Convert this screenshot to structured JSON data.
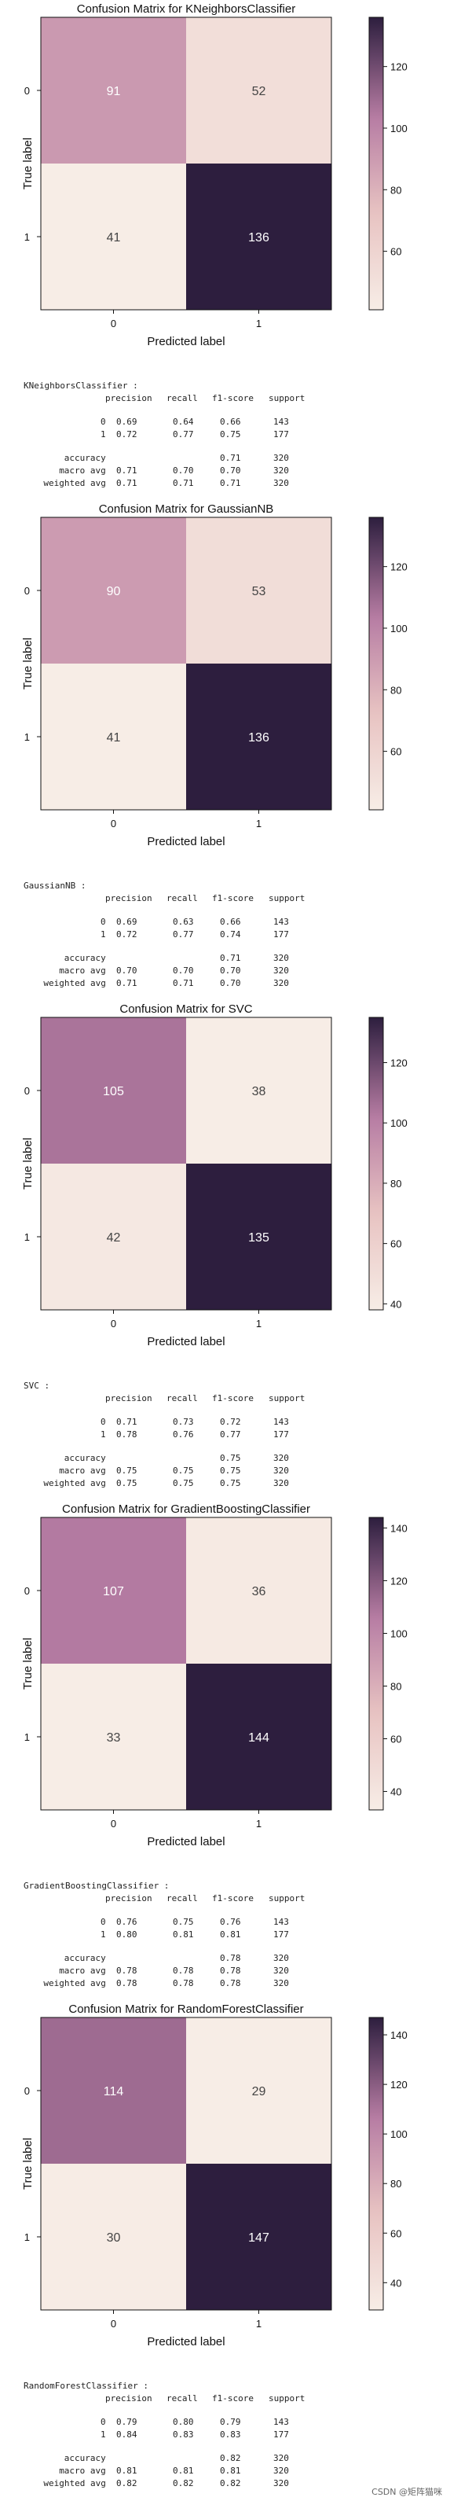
{
  "charts": [
    {
      "title": "Confusion Matrix for KNeighborsClassifier",
      "matrix": [
        [
          91,
          52
        ],
        [
          41,
          136
        ]
      ],
      "colorbar_ticks": [
        60,
        80,
        100,
        120
      ],
      "vmin": 41,
      "vmax": 136,
      "report": {
        "name": "KNeighborsClassifier :",
        "headers": [
          "precision",
          "recall",
          "f1-score",
          "support"
        ],
        "rows": [
          {
            "label": "0",
            "values": [
              "0.69",
              "0.64",
              "0.66",
              "143"
            ]
          },
          {
            "label": "1",
            "values": [
              "0.72",
              "0.77",
              "0.75",
              "177"
            ]
          }
        ],
        "summary": [
          {
            "label": "accuracy",
            "values": [
              "",
              "",
              "0.71",
              "320"
            ]
          },
          {
            "label": "macro avg",
            "values": [
              "0.71",
              "0.70",
              "0.70",
              "320"
            ]
          },
          {
            "label": "weighted avg",
            "values": [
              "0.71",
              "0.71",
              "0.71",
              "320"
            ]
          }
        ]
      }
    },
    {
      "title": "Confusion Matrix for GaussianNB",
      "matrix": [
        [
          90,
          53
        ],
        [
          41,
          136
        ]
      ],
      "colorbar_ticks": [
        60,
        80,
        100,
        120
      ],
      "vmin": 41,
      "vmax": 136,
      "report": {
        "name": "GaussianNB :",
        "headers": [
          "precision",
          "recall",
          "f1-score",
          "support"
        ],
        "rows": [
          {
            "label": "0",
            "values": [
              "0.69",
              "0.63",
              "0.66",
              "143"
            ]
          },
          {
            "label": "1",
            "values": [
              "0.72",
              "0.77",
              "0.74",
              "177"
            ]
          }
        ],
        "summary": [
          {
            "label": "accuracy",
            "values": [
              "",
              "",
              "0.71",
              "320"
            ]
          },
          {
            "label": "macro avg",
            "values": [
              "0.70",
              "0.70",
              "0.70",
              "320"
            ]
          },
          {
            "label": "weighted avg",
            "values": [
              "0.71",
              "0.71",
              "0.70",
              "320"
            ]
          }
        ]
      }
    },
    {
      "title": "Confusion Matrix for SVC",
      "matrix": [
        [
          105,
          38
        ],
        [
          42,
          135
        ]
      ],
      "colorbar_ticks": [
        40,
        60,
        80,
        100,
        120
      ],
      "vmin": 38,
      "vmax": 135,
      "report": {
        "name": "SVC :",
        "headers": [
          "precision",
          "recall",
          "f1-score",
          "support"
        ],
        "rows": [
          {
            "label": "0",
            "values": [
              "0.71",
              "0.73",
              "0.72",
              "143"
            ]
          },
          {
            "label": "1",
            "values": [
              "0.78",
              "0.76",
              "0.77",
              "177"
            ]
          }
        ],
        "summary": [
          {
            "label": "accuracy",
            "values": [
              "",
              "",
              "0.75",
              "320"
            ]
          },
          {
            "label": "macro avg",
            "values": [
              "0.75",
              "0.75",
              "0.75",
              "320"
            ]
          },
          {
            "label": "weighted avg",
            "values": [
              "0.75",
              "0.75",
              "0.75",
              "320"
            ]
          }
        ]
      }
    },
    {
      "title": "Confusion Matrix for GradientBoostingClassifier",
      "matrix": [
        [
          107,
          36
        ],
        [
          33,
          144
        ]
      ],
      "colorbar_ticks": [
        40,
        60,
        80,
        100,
        120,
        140
      ],
      "vmin": 33,
      "vmax": 144,
      "report": {
        "name": "GradientBoostingClassifier :",
        "headers": [
          "precision",
          "recall",
          "f1-score",
          "support"
        ],
        "rows": [
          {
            "label": "0",
            "values": [
              "0.76",
              "0.75",
              "0.76",
              "143"
            ]
          },
          {
            "label": "1",
            "values": [
              "0.80",
              "0.81",
              "0.81",
              "177"
            ]
          }
        ],
        "summary": [
          {
            "label": "accuracy",
            "values": [
              "",
              "",
              "0.78",
              "320"
            ]
          },
          {
            "label": "macro avg",
            "values": [
              "0.78",
              "0.78",
              "0.78",
              "320"
            ]
          },
          {
            "label": "weighted avg",
            "values": [
              "0.78",
              "0.78",
              "0.78",
              "320"
            ]
          }
        ]
      }
    },
    {
      "title": "Confusion Matrix for RandomForestClassifier",
      "matrix": [
        [
          114,
          29
        ],
        [
          30,
          147
        ]
      ],
      "colorbar_ticks": [
        40,
        60,
        80,
        100,
        120,
        140
      ],
      "vmin": 29,
      "vmax": 147,
      "report": {
        "name": "RandomForestClassifier :",
        "headers": [
          "precision",
          "recall",
          "f1-score",
          "support"
        ],
        "rows": [
          {
            "label": "0",
            "values": [
              "0.79",
              "0.80",
              "0.79",
              "143"
            ]
          },
          {
            "label": "1",
            "values": [
              "0.84",
              "0.83",
              "0.83",
              "177"
            ]
          }
        ],
        "summary": [
          {
            "label": "accuracy",
            "values": [
              "",
              "",
              "0.82",
              "320"
            ]
          },
          {
            "label": "macro avg",
            "values": [
              "0.81",
              "0.81",
              "0.81",
              "320"
            ]
          },
          {
            "label": "weighted avg",
            "values": [
              "0.82",
              "0.82",
              "0.82",
              "320"
            ]
          }
        ]
      }
    }
  ],
  "axis": {
    "xlabel": "Predicted label",
    "ylabel": "True label",
    "class_labels": [
      "0",
      "1"
    ]
  },
  "chart_data": [
    {
      "type": "heatmap",
      "title": "Confusion Matrix for KNeighborsClassifier",
      "x": [
        "0",
        "1"
      ],
      "y": [
        "0",
        "1"
      ],
      "values": [
        [
          91,
          52
        ],
        [
          41,
          136
        ]
      ],
      "xlabel": "Predicted label",
      "ylabel": "True label"
    },
    {
      "type": "heatmap",
      "title": "Confusion Matrix for GaussianNB",
      "x": [
        "0",
        "1"
      ],
      "y": [
        "0",
        "1"
      ],
      "values": [
        [
          90,
          53
        ],
        [
          41,
          136
        ]
      ],
      "xlabel": "Predicted label",
      "ylabel": "True label"
    },
    {
      "type": "heatmap",
      "title": "Confusion Matrix for SVC",
      "x": [
        "0",
        "1"
      ],
      "y": [
        "0",
        "1"
      ],
      "values": [
        [
          105,
          38
        ],
        [
          42,
          135
        ]
      ],
      "xlabel": "Predicted label",
      "ylabel": "True label"
    },
    {
      "type": "heatmap",
      "title": "Confusion Matrix for GradientBoostingClassifier",
      "x": [
        "0",
        "1"
      ],
      "y": [
        "0",
        "1"
      ],
      "values": [
        [
          107,
          36
        ],
        [
          33,
          144
        ]
      ],
      "xlabel": "Predicted label",
      "ylabel": "True label"
    },
    {
      "type": "heatmap",
      "title": "Confusion Matrix for RandomForestClassifier",
      "x": [
        "0",
        "1"
      ],
      "y": [
        "0",
        "1"
      ],
      "values": [
        [
          114,
          29
        ],
        [
          30,
          147
        ]
      ],
      "xlabel": "Predicted label",
      "ylabel": "True label"
    }
  ],
  "colors": {
    "low": "#f7ede6",
    "mid_low": "#e8c3c2",
    "mid": "#b67ca3",
    "high": "#2d1e3e",
    "dark_text": "#ffffff",
    "light_text": "#444444"
  },
  "watermark": "CSDN @矩阵猫咪"
}
